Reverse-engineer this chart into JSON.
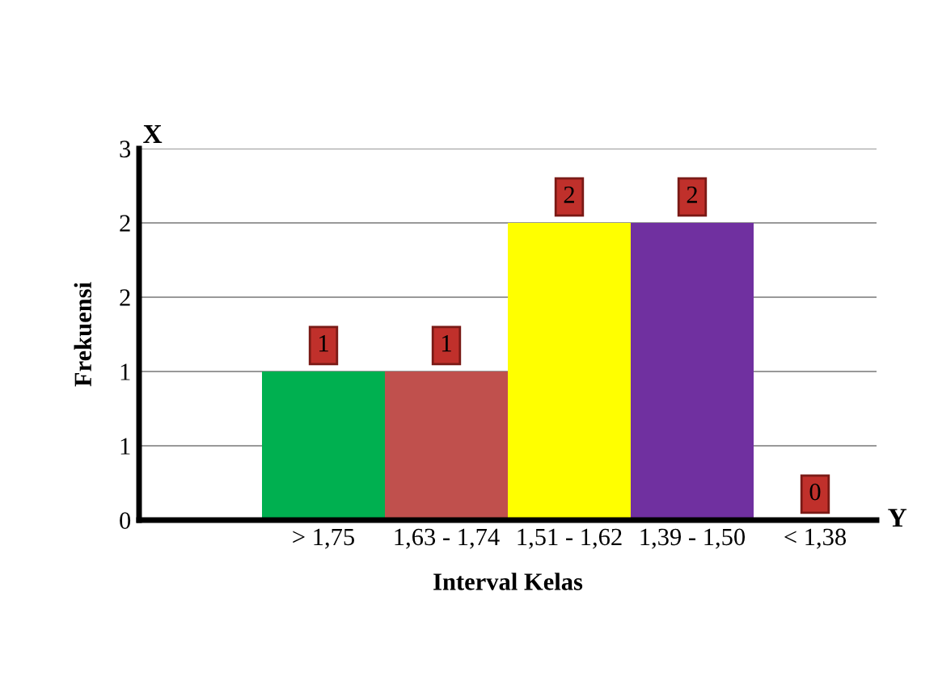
{
  "chart_data": {
    "type": "bar",
    "xlabel": "Interval Kelas",
    "ylabel": "Frekuensi",
    "categories": [
      null,
      "> 1,75",
      "1,63 - 1,74",
      "1,51 - 1,62",
      "1,39 - 1,50",
      "< 1,38"
    ],
    "values": [
      null,
      1,
      1,
      2,
      2,
      0
    ],
    "colors": [
      "#ffffff",
      "#00b050",
      "#c0504d",
      "#ffff00",
      "#7030a0",
      "#c0504d"
    ],
    "ylim": [
      0,
      2.5
    ],
    "yticks": [
      0,
      {
        "value": 0.5,
        "label": "1"
      },
      1,
      {
        "value": 1.5,
        "label": "2"
      },
      2,
      {
        "value": 2.5,
        "label": "3"
      }
    ],
    "grid": "y",
    "data_labels": true,
    "annotations": [
      "X",
      "Y"
    ]
  }
}
